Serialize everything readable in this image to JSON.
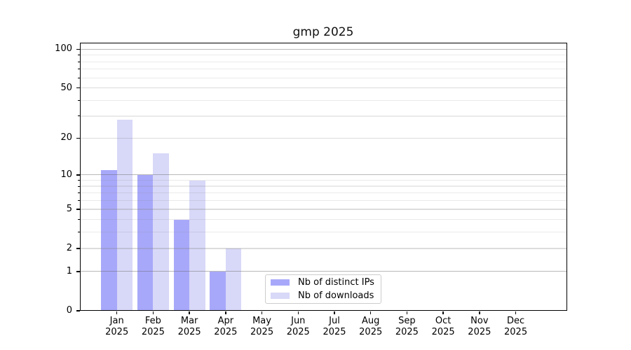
{
  "title": "gmp 2025",
  "legend": {
    "items": [
      {
        "label": "Nb of distinct IPs",
        "color": "#a8a8fa"
      },
      {
        "label": "Nb of downloads",
        "color": "#d8d8f8"
      }
    ],
    "position": "lower center"
  },
  "chart_data": {
    "type": "bar",
    "title": "gmp 2025",
    "categories": [
      "Jan",
      "Feb",
      "Mar",
      "Apr",
      "May",
      "Jun",
      "Jul",
      "Aug",
      "Sep",
      "Oct",
      "Nov",
      "Dec"
    ],
    "category_year": "2025",
    "series": [
      {
        "name": "Nb of distinct IPs",
        "color": "#a8a8fa",
        "values": [
          11,
          10,
          4,
          1,
          0,
          0,
          0,
          0,
          0,
          0,
          0,
          0
        ]
      },
      {
        "name": "Nb of downloads",
        "color": "#d8d8f8",
        "values": [
          28,
          15,
          9,
          2,
          0,
          0,
          0,
          0,
          0,
          0,
          0,
          0
        ]
      }
    ],
    "yscale": "log1p",
    "ylim": [
      0,
      113
    ],
    "yticks": [
      0,
      1,
      2,
      5,
      10,
      20,
      50,
      100
    ],
    "yticks_decade": [
      1,
      10,
      100
    ],
    "minor_yticks": [
      3,
      4,
      6,
      7,
      8,
      9,
      30,
      40,
      60,
      70,
      80,
      90
    ],
    "grid": "both",
    "legend_position": "lower center"
  },
  "colors": {
    "bar_distinct_ips": "#a8a8fa",
    "bar_downloads": "#d8d8f8",
    "grid_decade": "#bcbcbc",
    "grid_major": "#dcdcdc",
    "grid_minor": "#e8e8e8",
    "axis": "#000000",
    "background": "#ffffff"
  }
}
